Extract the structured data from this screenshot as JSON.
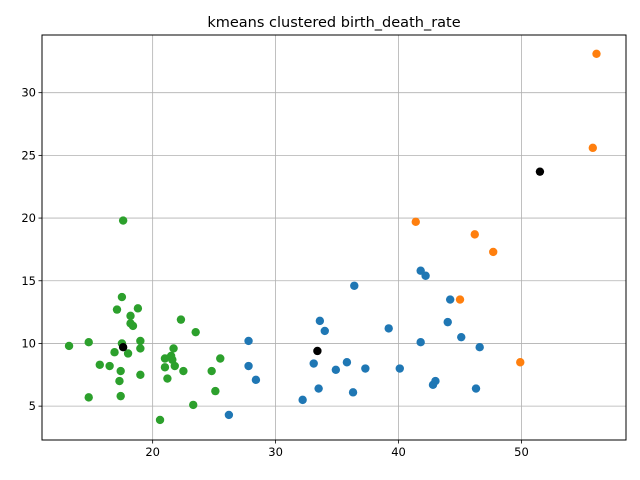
{
  "chart_data": {
    "type": "scatter",
    "title": "kmeans clustered birth_death_rate",
    "xlabel": "",
    "ylabel": "",
    "xlim": [
      11.0,
      58.5
    ],
    "ylim": [
      2.3,
      34.6
    ],
    "xticks": [
      20,
      30,
      40,
      50
    ],
    "yticks": [
      5,
      10,
      15,
      20,
      25,
      30
    ],
    "grid": true,
    "series": [
      {
        "color": "#2ca02c",
        "points": [
          [
            13.2,
            9.8
          ],
          [
            14.8,
            10.1
          ],
          [
            14.8,
            5.7
          ],
          [
            15.7,
            8.3
          ],
          [
            16.5,
            8.2
          ],
          [
            16.9,
            9.3
          ],
          [
            17.1,
            12.7
          ],
          [
            17.3,
            7.0
          ],
          [
            17.4,
            7.8
          ],
          [
            17.4,
            5.8
          ],
          [
            17.5,
            13.7
          ],
          [
            17.5,
            10.0
          ],
          [
            17.6,
            19.8
          ],
          [
            18.0,
            9.2
          ],
          [
            18.2,
            12.2
          ],
          [
            18.2,
            11.6
          ],
          [
            18.4,
            11.4
          ],
          [
            18.8,
            12.8
          ],
          [
            19.0,
            10.2
          ],
          [
            19.0,
            9.6
          ],
          [
            19.0,
            7.5
          ],
          [
            20.6,
            3.9
          ],
          [
            21.0,
            8.8
          ],
          [
            21.0,
            8.1
          ],
          [
            21.2,
            7.2
          ],
          [
            21.5,
            9.0
          ],
          [
            21.6,
            8.7
          ],
          [
            21.7,
            9.6
          ],
          [
            21.8,
            8.2
          ],
          [
            22.3,
            11.9
          ],
          [
            22.5,
            7.8
          ],
          [
            23.3,
            5.1
          ],
          [
            23.5,
            10.9
          ],
          [
            24.8,
            7.8
          ],
          [
            25.1,
            6.2
          ],
          [
            25.5,
            8.8
          ]
        ]
      },
      {
        "color": "#1f77b4",
        "points": [
          [
            26.2,
            4.3
          ],
          [
            27.8,
            10.2
          ],
          [
            27.8,
            8.2
          ],
          [
            28.4,
            7.1
          ],
          [
            32.2,
            5.5
          ],
          [
            33.1,
            8.4
          ],
          [
            33.5,
            6.4
          ],
          [
            33.6,
            11.8
          ],
          [
            34.0,
            11.0
          ],
          [
            34.9,
            7.9
          ],
          [
            35.8,
            8.5
          ],
          [
            36.3,
            6.1
          ],
          [
            36.4,
            14.6
          ],
          [
            37.3,
            8.0
          ],
          [
            39.2,
            11.2
          ],
          [
            40.1,
            8.0
          ],
          [
            41.8,
            15.8
          ],
          [
            41.8,
            10.1
          ],
          [
            42.2,
            15.4
          ],
          [
            42.8,
            6.7
          ],
          [
            43.0,
            7.0
          ],
          [
            44.0,
            11.7
          ],
          [
            44.2,
            13.5
          ],
          [
            45.1,
            10.5
          ],
          [
            46.3,
            6.4
          ],
          [
            46.6,
            9.7
          ]
        ]
      },
      {
        "color": "#ff7f0e",
        "points": [
          [
            41.4,
            19.7
          ],
          [
            45.0,
            13.5
          ],
          [
            46.2,
            18.7
          ],
          [
            47.7,
            17.3
          ],
          [
            49.9,
            8.5
          ],
          [
            55.8,
            25.6
          ],
          [
            56.1,
            33.1
          ]
        ]
      }
    ],
    "centroids": {
      "color": "#000000",
      "points": [
        [
          17.6,
          9.7
        ],
        [
          33.4,
          9.4
        ],
        [
          51.5,
          23.7
        ]
      ]
    }
  }
}
